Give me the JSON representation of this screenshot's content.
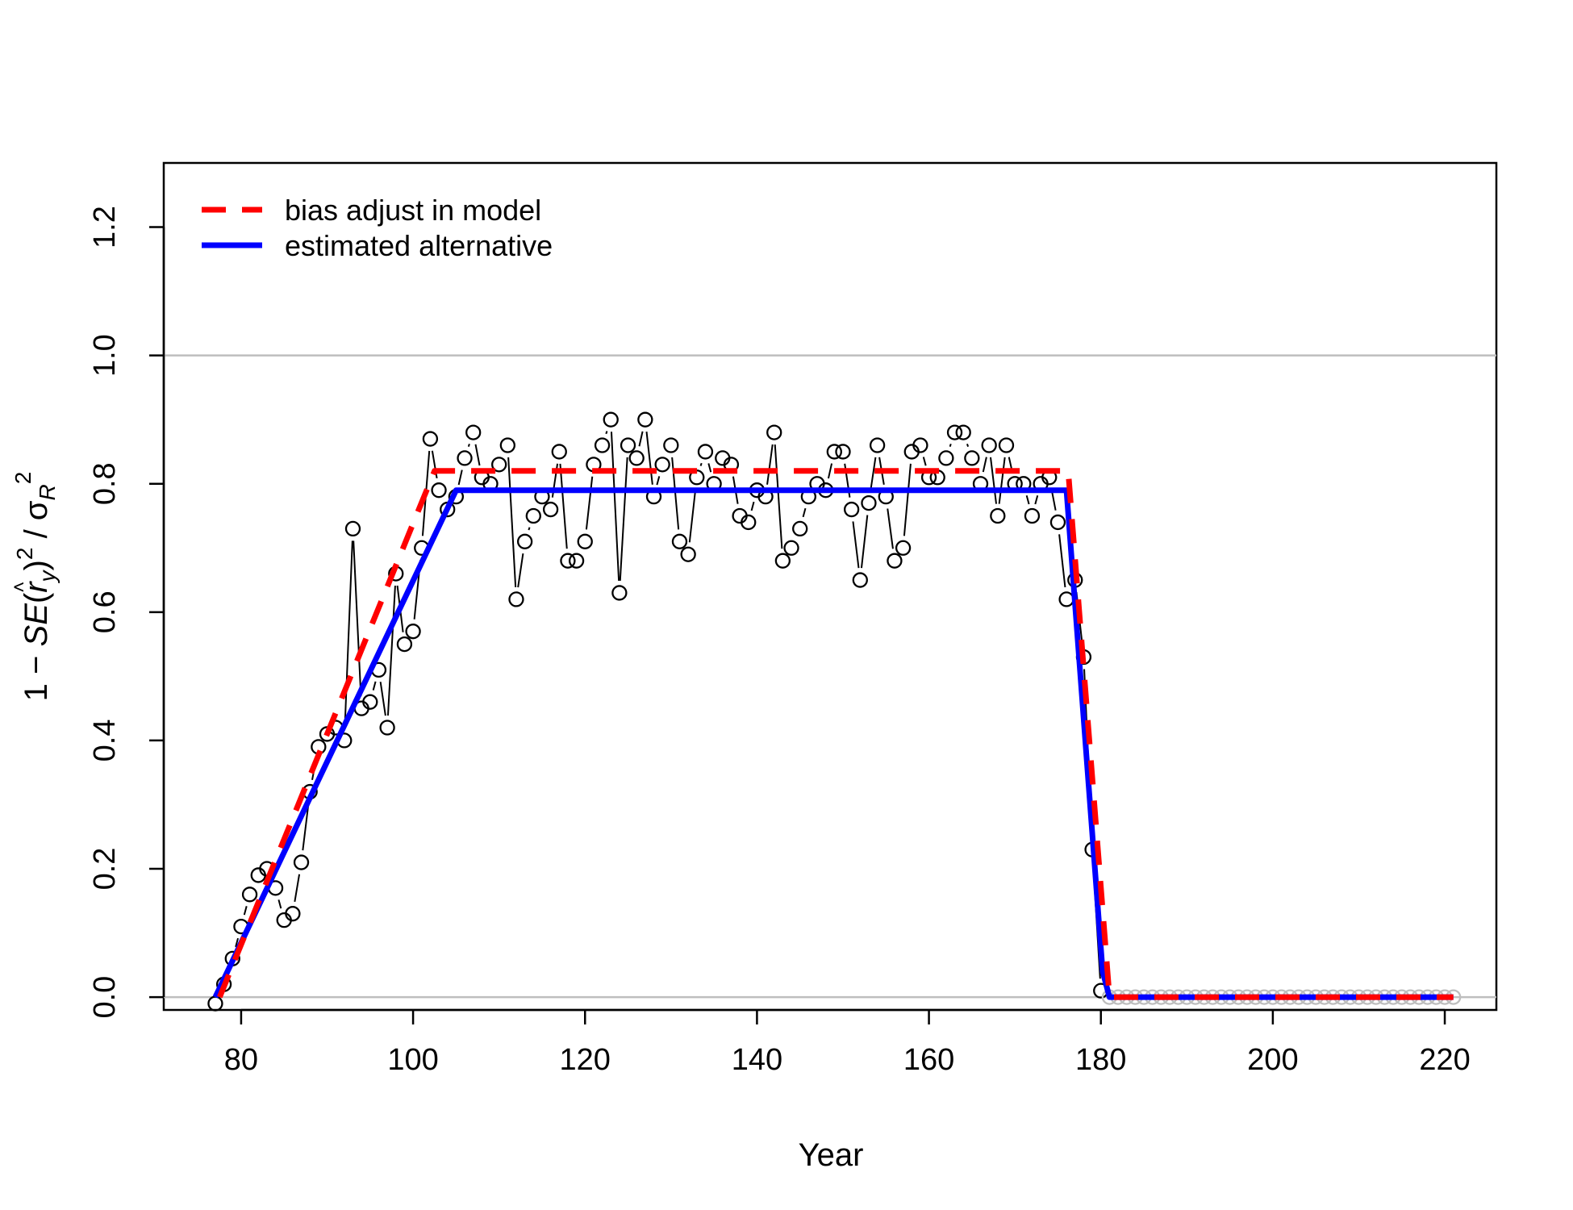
{
  "chart_data": {
    "type": "scatter",
    "title": "",
    "xlabel": "Year",
    "ylabel": {
      "prefix": "1 − ",
      "se": "SE",
      "r": "r",
      "hat": "˄",
      "sub_y": "y",
      "sup2": "2",
      "slash": " / ",
      "sigma": "σ",
      "sub_R": "R"
    },
    "xlim": [
      71,
      226
    ],
    "ylim": [
      -0.02,
      1.3
    ],
    "xticks": [
      80,
      100,
      120,
      140,
      160,
      180,
      200,
      220
    ],
    "yticks": [
      0.0,
      0.2,
      0.4,
      0.6,
      0.8,
      1.0,
      1.2
    ],
    "ytick_labels": [
      "0.0",
      "0.2",
      "0.4",
      "0.6",
      "0.8",
      "1.0",
      "1.2"
    ],
    "reference_lines": [
      0.0,
      1.0
    ],
    "reference_color": "#bebebe",
    "legend": {
      "position": "top-left",
      "entries": [
        {
          "label": "bias adjust in model",
          "color": "#ff0000",
          "style": "dashed"
        },
        {
          "label": "estimated alternative",
          "color": "#0000ff",
          "style": "solid"
        }
      ]
    },
    "points": {
      "x": [
        77,
        78,
        79,
        80,
        81,
        82,
        83,
        84,
        85,
        86,
        87,
        88,
        89,
        90,
        91,
        92,
        93,
        94,
        95,
        96,
        97,
        98,
        99,
        100,
        101,
        102,
        103,
        104,
        105,
        106,
        107,
        108,
        109,
        110,
        111,
        112,
        113,
        114,
        115,
        116,
        117,
        118,
        119,
        120,
        121,
        122,
        123,
        124,
        125,
        126,
        127,
        128,
        129,
        130,
        131,
        132,
        133,
        134,
        135,
        136,
        137,
        138,
        139,
        140,
        141,
        142,
        143,
        144,
        145,
        146,
        147,
        148,
        149,
        150,
        151,
        152,
        153,
        154,
        155,
        156,
        157,
        158,
        159,
        160,
        161,
        162,
        163,
        164,
        165,
        166,
        167,
        168,
        169,
        170,
        171,
        172,
        173,
        174,
        175,
        176,
        177,
        178,
        179,
        180
      ],
      "y": [
        -0.01,
        0.02,
        0.06,
        0.11,
        0.16,
        0.19,
        0.2,
        0.17,
        0.12,
        0.13,
        0.21,
        0.32,
        0.39,
        0.41,
        0.42,
        0.4,
        0.73,
        0.45,
        0.46,
        0.51,
        0.42,
        0.66,
        0.55,
        0.57,
        0.7,
        0.87,
        0.79,
        0.76,
        0.78,
        0.84,
        0.88,
        0.81,
        0.8,
        0.83,
        0.86,
        0.62,
        0.71,
        0.75,
        0.78,
        0.76,
        0.85,
        0.68,
        0.68,
        0.71,
        0.83,
        0.86,
        0.9,
        0.63,
        0.86,
        0.84,
        0.9,
        0.78,
        0.83,
        0.86,
        0.71,
        0.69,
        0.81,
        0.85,
        0.8,
        0.84,
        0.83,
        0.75,
        0.74,
        0.79,
        0.78,
        0.88,
        0.68,
        0.7,
        0.73,
        0.78,
        0.8,
        0.79,
        0.85,
        0.85,
        0.76,
        0.65,
        0.77,
        0.86,
        0.78,
        0.68,
        0.7,
        0.85,
        0.86,
        0.81,
        0.81,
        0.84,
        0.88,
        0.88,
        0.84,
        0.8,
        0.86,
        0.75,
        0.86,
        0.8,
        0.8,
        0.75,
        0.8,
        0.81,
        0.74,
        0.62,
        0.65,
        0.53,
        0.23,
        0.01
      ],
      "zero_x_start": 181,
      "zero_x_end": 221,
      "zero_color": "#bebebe"
    },
    "series": [
      {
        "name": "bias adjust in model",
        "color": "#ff0000",
        "style": "dashed",
        "x": [
          77.5,
          102.5,
          176.2,
          181,
          221
        ],
        "y": [
          0.0,
          0.82,
          0.82,
          0.0,
          0.0
        ]
      },
      {
        "name": "estimated alternative",
        "color": "#0000ff",
        "style": "solid",
        "x": [
          77,
          105,
          176,
          180.2,
          181,
          221
        ],
        "y": [
          0.0,
          0.79,
          0.79,
          0.04,
          0.0,
          0.0
        ]
      }
    ]
  }
}
